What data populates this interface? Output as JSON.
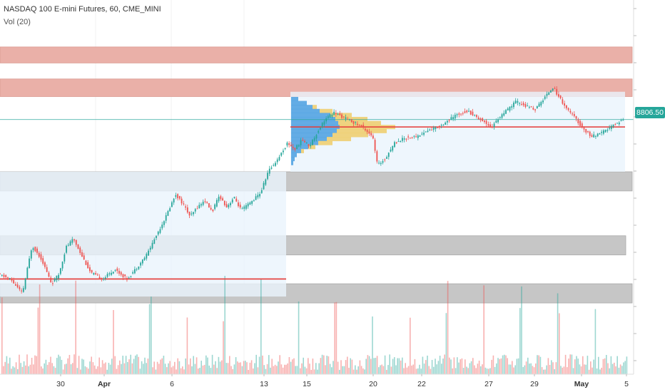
{
  "header": {
    "title": "NASDAQ 100 E-mini Futures, 60, CME_MINI",
    "volume_label": "Vol (20)"
  },
  "price_tag": "8806.50",
  "colors": {
    "up": "#26a69a",
    "down": "#ef5350",
    "resistance_zone": "#eab0a8",
    "support_zone": "#c6c6c6",
    "poc_line": "#e53935",
    "last_price_line": "#26a69a",
    "profile_blue": "#4a9fe0",
    "profile_yellow": "#efcd6a",
    "value_area_fill": "#eaf4fc"
  },
  "chart_data": {
    "type": "candlestick",
    "title": "NASDAQ 100 E-mini Futures, 60, CME_MINI",
    "indicator": "Vol (20)",
    "x_tick_labels": [
      "30",
      "Apr",
      "6",
      "13",
      "15",
      "20",
      "22",
      "27",
      "29",
      "May",
      "5"
    ],
    "last_price": 8806.5,
    "price_levels": [
      {
        "name": "resistance-zone-upper",
        "kind": "resistance",
        "low": 9160,
        "high": 9260
      },
      {
        "name": "resistance-zone-lower",
        "kind": "resistance",
        "low": 8950,
        "high": 9060
      },
      {
        "name": "support-zone-1",
        "kind": "support",
        "low": 8360,
        "high": 8480
      },
      {
        "name": "support-zone-2",
        "kind": "support",
        "low": 7960,
        "high": 8080
      },
      {
        "name": "support-zone-3",
        "kind": "support",
        "low": 7660,
        "high": 7780
      },
      {
        "name": "poc-line-left",
        "kind": "poc",
        "value": 7810
      },
      {
        "name": "poc-line-right",
        "kind": "poc",
        "value": 8760
      }
    ],
    "price_path": [
      [
        28.5,
        7840
      ],
      [
        29.0,
        7810
      ],
      [
        29.5,
        7720
      ],
      [
        29.9,
        8020
      ],
      [
        30.3,
        7930
      ],
      [
        30.7,
        7780
      ],
      [
        31.0,
        7840
      ],
      [
        31.3,
        8010
      ],
      [
        31.6,
        8060
      ],
      [
        31.9,
        7970
      ],
      [
        32.3,
        7850
      ],
      [
        32.8,
        7810
      ],
      [
        33.3,
        7870
      ],
      [
        33.8,
        7810
      ],
      [
        34.2,
        7880
      ],
      [
        34.6,
        7960
      ],
      [
        35.0,
        8080
      ],
      [
        35.4,
        8200
      ],
      [
        35.8,
        8340
      ],
      [
        36.1,
        8280
      ],
      [
        36.4,
        8200
      ],
      [
        36.7,
        8260
      ],
      [
        37.0,
        8300
      ],
      [
        37.3,
        8230
      ],
      [
        37.6,
        8330
      ],
      [
        37.9,
        8260
      ],
      [
        38.2,
        8320
      ],
      [
        38.5,
        8240
      ],
      [
        38.9,
        8290
      ],
      [
        39.3,
        8350
      ],
      [
        39.6,
        8480
      ],
      [
        40.0,
        8560
      ],
      [
        40.4,
        8660
      ],
      [
        40.7,
        8620
      ],
      [
        41.0,
        8680
      ],
      [
        41.3,
        8640
      ],
      [
        41.6,
        8720
      ],
      [
        41.9,
        8800
      ],
      [
        42.3,
        8850
      ],
      [
        42.7,
        8820
      ],
      [
        43.1,
        8790
      ],
      [
        43.5,
        8760
      ],
      [
        43.9,
        8700
      ],
      [
        44.1,
        8520
      ],
      [
        44.4,
        8560
      ],
      [
        44.8,
        8660
      ],
      [
        45.2,
        8690
      ],
      [
        45.7,
        8700
      ],
      [
        46.2,
        8740
      ],
      [
        46.6,
        8760
      ],
      [
        47.0,
        8800
      ],
      [
        47.4,
        8840
      ],
      [
        47.8,
        8860
      ],
      [
        48.1,
        8830
      ],
      [
        48.5,
        8790
      ],
      [
        48.8,
        8760
      ],
      [
        49.1,
        8820
      ],
      [
        49.4,
        8860
      ],
      [
        49.8,
        8920
      ],
      [
        50.2,
        8890
      ],
      [
        50.6,
        8870
      ],
      [
        50.9,
        8930
      ],
      [
        51.3,
        9010
      ],
      [
        51.6,
        8940
      ],
      [
        51.9,
        8870
      ],
      [
        52.2,
        8820
      ],
      [
        52.5,
        8760
      ],
      [
        52.9,
        8700
      ],
      [
        53.3,
        8720
      ],
      [
        53.7,
        8760
      ],
      [
        54.0,
        8790
      ],
      [
        54.2,
        8806.5
      ]
    ]
  }
}
